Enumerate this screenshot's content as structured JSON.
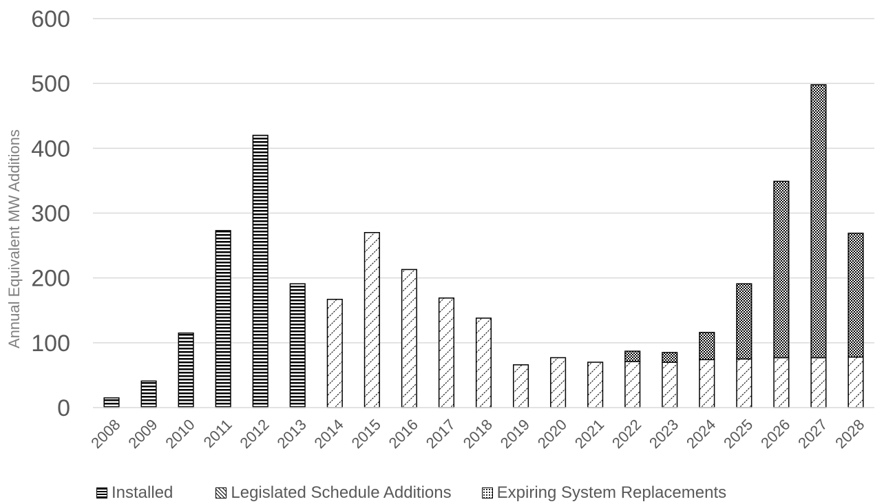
{
  "chart_data": {
    "type": "bar",
    "stacked": true,
    "title": "",
    "xlabel": "",
    "ylabel": "Annual Equivalent MW Additions",
    "ylim": [
      0,
      600
    ],
    "yticks": [
      0,
      100,
      200,
      300,
      400,
      500,
      600
    ],
    "grid": true,
    "legend_position": "bottom",
    "categories": [
      "2008",
      "2009",
      "2010",
      "2011",
      "2012",
      "2013",
      "2014",
      "2015",
      "2016",
      "2017",
      "2018",
      "2019",
      "2020",
      "2021",
      "2022",
      "2023",
      "2024",
      "2025",
      "2026",
      "2027",
      "2028"
    ],
    "series": [
      {
        "name": "Installed",
        "values": [
          15,
          41,
          115,
          273,
          420,
          191,
          0,
          0,
          0,
          0,
          0,
          0,
          0,
          0,
          0,
          0,
          0,
          0,
          0,
          0,
          0
        ]
      },
      {
        "name": "Legislated Schedule Additions",
        "values": [
          0,
          0,
          0,
          0,
          0,
          0,
          167,
          270,
          213,
          169,
          138,
          66,
          77,
          70,
          71,
          70,
          74,
          75,
          77,
          77,
          78
        ]
      },
      {
        "name": "Expiring System Replacements",
        "values": [
          0,
          0,
          0,
          0,
          0,
          0,
          0,
          0,
          0,
          0,
          0,
          0,
          0,
          0,
          16,
          15,
          42,
          116,
          272,
          421,
          191
        ]
      }
    ]
  }
}
